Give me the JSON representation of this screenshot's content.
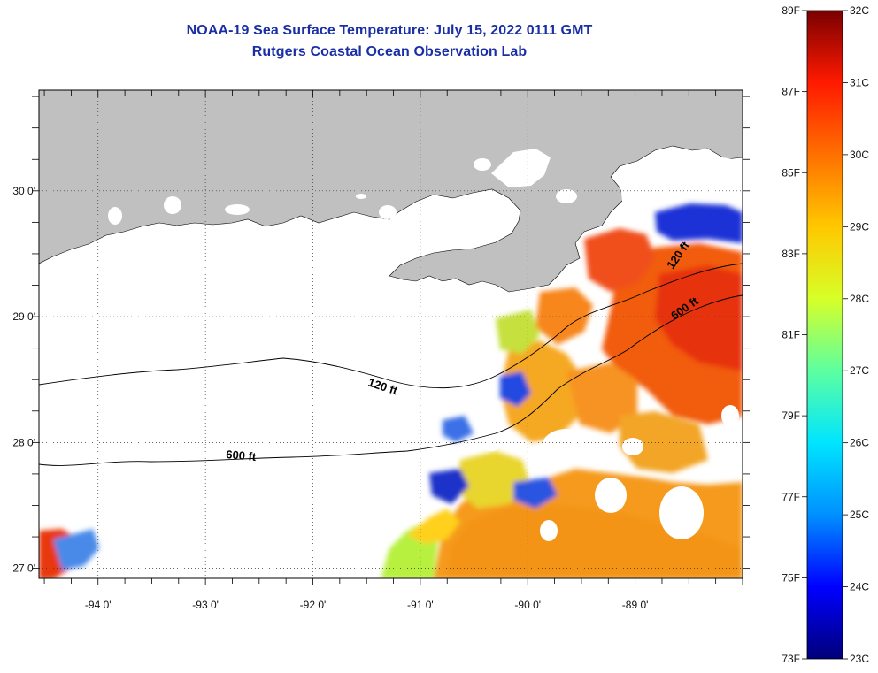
{
  "title": "NOAA-19 Sea Surface Temperature:  July 15, 2022 0111 GMT",
  "subtitle": "Rutgers Coastal Ocean Observation Lab",
  "map": {
    "lon_ticks": [
      {
        "value": -94,
        "label": "-94 0'"
      },
      {
        "value": -93,
        "label": "-93 0'"
      },
      {
        "value": -92,
        "label": "-92 0'"
      },
      {
        "value": -91,
        "label": "-91 0'"
      },
      {
        "value": -90,
        "label": "-90 0'"
      },
      {
        "value": -89,
        "label": "-89 0'"
      }
    ],
    "lat_ticks": [
      {
        "value": 30,
        "label": "30 0'"
      },
      {
        "value": 29,
        "label": "29 0'"
      },
      {
        "value": 28,
        "label": "28 0'"
      },
      {
        "value": 27,
        "label": "27 0'"
      }
    ],
    "lon_range": [
      -94.55,
      -88.0
    ],
    "lat_range": [
      26.92,
      30.8
    ],
    "land_color": "#c0c0c0",
    "grid": "dotted",
    "contours": [
      {
        "label": "120 ft"
      },
      {
        "label": "600 ft"
      },
      {
        "label": "600 ft"
      },
      {
        "label": "120 ft"
      }
    ]
  },
  "colorbar": {
    "fahrenheit": [
      "89F",
      "87F",
      "85F",
      "83F",
      "81F",
      "79F",
      "77F",
      "75F",
      "73F"
    ],
    "celsius": [
      "32C",
      "31C",
      "30C",
      "29C",
      "28C",
      "27C",
      "26C",
      "25C",
      "24C",
      "23C"
    ],
    "range_c": [
      23,
      32
    ],
    "colors": [
      "#00007a",
      "#0000ff",
      "#0090ff",
      "#00e5ff",
      "#5dffa0",
      "#d7ff28",
      "#ffc800",
      "#ff7000",
      "#ff1a00",
      "#7a0000"
    ]
  }
}
